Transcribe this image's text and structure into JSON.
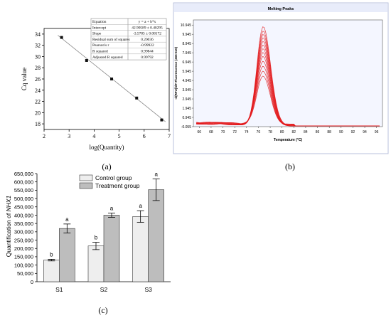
{
  "chart_data": [
    {
      "type": "scatter",
      "panel": "(a)",
      "xlabel": "log(Quantity)",
      "ylabel": "Cq value",
      "xlim": [
        2,
        7
      ],
      "ylim": [
        17,
        35
      ],
      "xticks": [
        "2",
        "3",
        "4",
        "5",
        "6",
        "7"
      ],
      "yticks": [
        "18",
        "20",
        "22",
        "24",
        "26",
        "28",
        "30",
        "32",
        "34"
      ],
      "points": [
        {
          "x": 2.7,
          "y": 33.4
        },
        {
          "x": 3.7,
          "y": 29.3
        },
        {
          "x": 4.7,
          "y": 26.0
        },
        {
          "x": 5.7,
          "y": 22.6
        },
        {
          "x": 6.7,
          "y": 18.7
        }
      ],
      "fit": {
        "intercept": 42.90589,
        "slope": -3.5785
      },
      "stats_table": [
        [
          "Equation",
          "y = a + b*x"
        ],
        [
          "Intercept",
          "42.90589 ± 0.40295"
        ],
        [
          "Slope",
          "-3.5785 ± 0.08172"
        ],
        [
          "Residual sum of squares",
          "0.20036"
        ],
        [
          "Pearson's r",
          "-0.99922"
        ],
        [
          "R squared",
          "0.99844"
        ],
        [
          "Adjusted R squared",
          "0.99792"
        ]
      ]
    },
    {
      "type": "line",
      "panel": "(b)",
      "title": "Melting Peaks",
      "xlabel": "Temperature (°C)",
      "ylabel": "-d(RFU)/dT Fluorescence (465-510)",
      "xlim": [
        65,
        97
      ],
      "ylim": [
        -0.055,
        11.5
      ],
      "xticks": [
        "66",
        "68",
        "70",
        "72",
        "74",
        "76",
        "78",
        "80",
        "82",
        "84",
        "86",
        "88",
        "90",
        "92",
        "94",
        "96"
      ],
      "yticks": [
        "10.945",
        "9.945",
        "8.945",
        "7.945",
        "6.945",
        "5.945",
        "4.945",
        "3.945",
        "2.945",
        "1.945",
        "0.945",
        "-0.055"
      ],
      "peak_temperature": 76.8,
      "peak_heights": [
        10.6,
        10.1,
        9.7,
        9.3,
        8.9,
        8.5,
        8.1,
        7.7,
        7.3,
        6.8,
        6.3,
        5.8,
        5.3
      ],
      "series_color": "#e31a1c",
      "background": "#f4f6ff"
    },
    {
      "type": "bar",
      "panel": "(c)",
      "ylabel_prefix": "Quantification of ",
      "ylabel_gene": "NHX1",
      "categories": [
        "S1",
        "S2",
        "S3"
      ],
      "series": [
        {
          "name": "Control group",
          "values": [
            130000,
            215000,
            392000
          ],
          "errors": [
            5000,
            22000,
            35000
          ],
          "letters": [
            "b",
            "b",
            "a"
          ],
          "color": "#eeeeee"
        },
        {
          "name": "Treatment group",
          "values": [
            320000,
            400000,
            553000
          ],
          "errors": [
            27000,
            13000,
            65000
          ],
          "letters": [
            "a",
            "a",
            "a"
          ],
          "color": "#bdbdbd"
        }
      ],
      "ylim": [
        0,
        650000
      ],
      "yticks": [
        "0",
        "50,000",
        "100,000",
        "150,000",
        "200,000",
        "250,000",
        "300,000",
        "350,000",
        "400,000",
        "450,000",
        "500,000",
        "550,000",
        "600,000",
        "650,000"
      ],
      "legend_position": "top"
    }
  ],
  "captions": {
    "a": "(a)",
    "b": "(b)",
    "c": "(c)"
  }
}
